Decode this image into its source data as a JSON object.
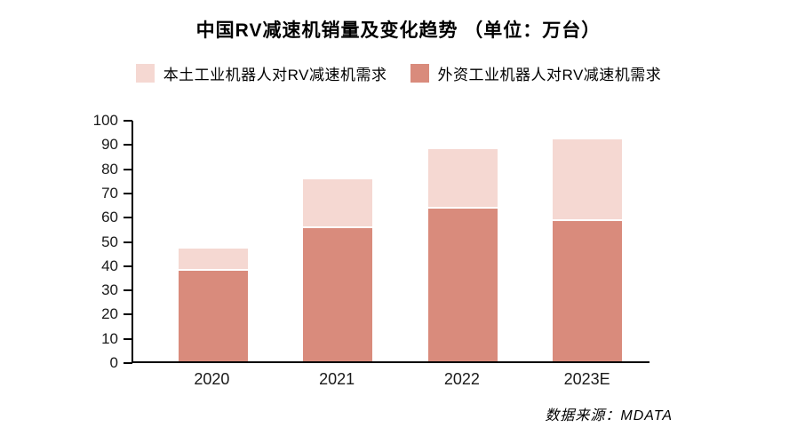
{
  "title": "中国RV减速机销量及变化趋势 （单位：万台）",
  "source_note": "数据来源：MDATA",
  "colors": {
    "local_series": "#F5D8D2",
    "foreign_series": "#D98B7C",
    "axis": "#000000",
    "background": "#FFFFFF"
  },
  "legend": {
    "items": [
      {
        "label": "本土工业机器人对RV减速机需求",
        "color": "#F5D8D2"
      },
      {
        "label": "外资工业机器人对RV减速机需求",
        "color": "#D98B7C"
      }
    ]
  },
  "chart_data": {
    "type": "bar",
    "stacked": true,
    "title": "中国RV减速机销量及变化趋势 （单位：万台）",
    "categories": [
      "2020",
      "2021",
      "2022",
      "2023E"
    ],
    "series": [
      {
        "name": "外资工业机器人对RV减速机需求",
        "values": [
          37.5,
          55,
          63,
          58
        ],
        "color": "#D98B7C",
        "stack_position": "bottom"
      },
      {
        "name": "本土工业机器人对RV减速机需求",
        "values": [
          9,
          20,
          24.5,
          33.5
        ],
        "color": "#F5D8D2",
        "stack_position": "top"
      }
    ],
    "totals": [
      46.5,
      75,
      87.5,
      91.5
    ],
    "xlabel": "",
    "ylabel": "",
    "unit": "万台",
    "ylim": [
      0,
      100
    ],
    "yticks": [
      0,
      10,
      20,
      30,
      40,
      50,
      60,
      70,
      80,
      90,
      100
    ],
    "grid": false,
    "legend_position": "top"
  }
}
